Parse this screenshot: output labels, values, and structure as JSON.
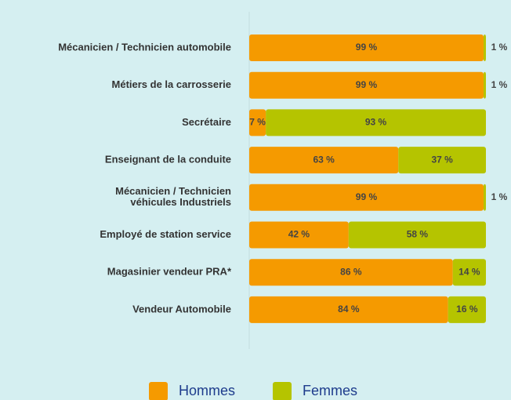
{
  "chart_data": {
    "type": "stacked-bar-horizontal",
    "categories": [
      "Mécanicien / Technicien automobile",
      "Métiers de la carrosserie",
      "Secrétaire",
      "Enseignant de la conduite",
      "Mécanicien / Technicien\nvéhicules Industriels",
      "Employé de station service",
      "Magasinier vendeur PRA*",
      "Vendeur Automobile"
    ],
    "series": [
      {
        "name": "Hommes",
        "color": "#f59a00",
        "values": [
          99,
          99,
          7,
          63,
          99,
          42,
          86,
          84
        ],
        "value_labels": [
          "99 %",
          "99 %",
          "7 %",
          "63 %",
          "99 %",
          "42 %",
          "86 %",
          "84 %"
        ]
      },
      {
        "name": "Femmes",
        "color": "#b5c400",
        "values": [
          1,
          1,
          93,
          37,
          1,
          58,
          14,
          16
        ],
        "value_labels": [
          "1 %",
          "1 %",
          "93 %",
          "37 %",
          "1 %",
          "58 %",
          "14 %",
          "16 %"
        ]
      }
    ],
    "xlim": [
      0,
      100
    ]
  }
}
